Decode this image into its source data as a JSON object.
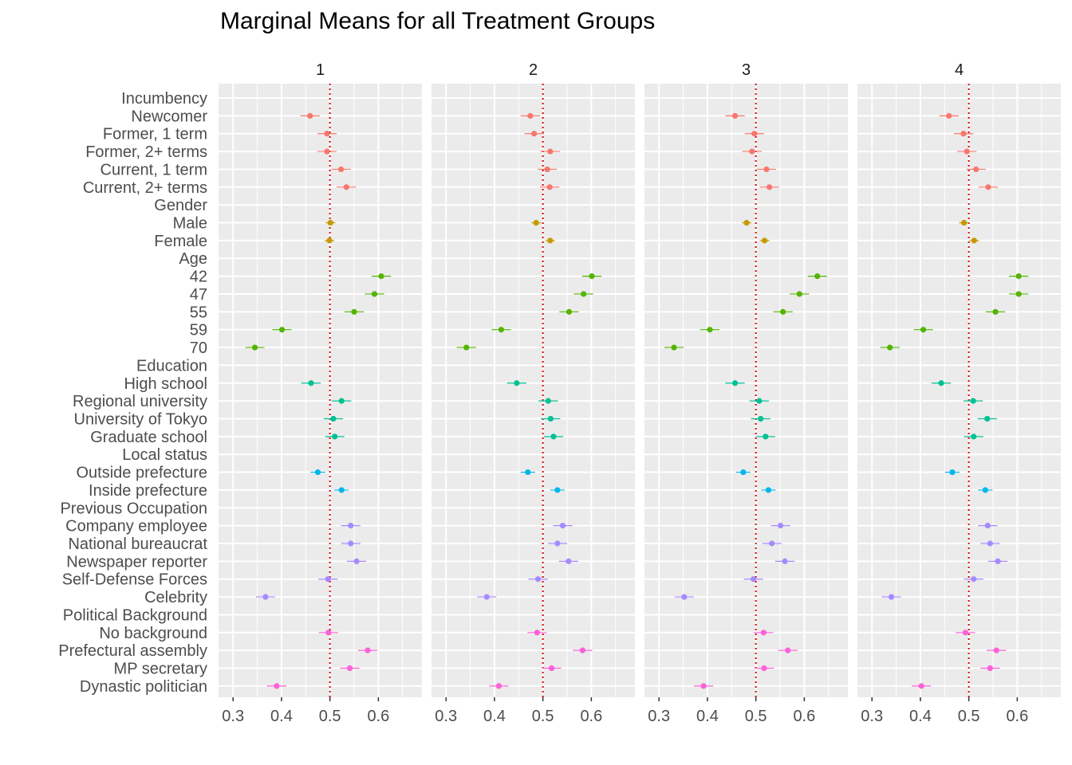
{
  "chart_data": {
    "type": "scatter",
    "title": "Marginal Means for all Treatment Groups",
    "xlabel": "",
    "ylabel": "",
    "xlim": [
      0.27,
      0.69
    ],
    "x_ticks": [
      "0.3",
      "0.4",
      "0.5",
      "0.6"
    ],
    "reference_line": 0.5,
    "grid": true,
    "legend": "none",
    "panels": [
      "1",
      "2",
      "3",
      "4"
    ],
    "rows": [
      {
        "label": "Incumbency",
        "header": true
      },
      {
        "label": "Newcomer",
        "group": "Incumbency",
        "color": "#F8766D",
        "values": [
          0.459,
          0.474,
          0.457,
          0.459
        ],
        "ci": [
          0.02,
          0.02,
          0.02,
          0.02
        ]
      },
      {
        "label": "Former, 1 term",
        "group": "Incumbency",
        "color": "#F8766D",
        "values": [
          0.494,
          0.482,
          0.497,
          0.489
        ],
        "ci": [
          0.02,
          0.02,
          0.02,
          0.02
        ]
      },
      {
        "label": "Former, 2+ terms",
        "group": "Incumbency",
        "color": "#F8766D",
        "values": [
          0.494,
          0.515,
          0.492,
          0.496
        ],
        "ci": [
          0.02,
          0.02,
          0.02,
          0.02
        ]
      },
      {
        "label": "Current, 1 term",
        "group": "Incumbency",
        "color": "#F8766D",
        "values": [
          0.523,
          0.509,
          0.522,
          0.515
        ],
        "ci": [
          0.02,
          0.02,
          0.02,
          0.02
        ]
      },
      {
        "label": "Current, 2+ terms",
        "group": "Incumbency",
        "color": "#F8766D",
        "values": [
          0.534,
          0.514,
          0.528,
          0.54
        ],
        "ci": [
          0.02,
          0.02,
          0.02,
          0.02
        ]
      },
      {
        "label": "Gender",
        "header": true
      },
      {
        "label": "Male",
        "group": "Gender",
        "color": "#C49A00",
        "values": [
          0.501,
          0.486,
          0.481,
          0.49
        ],
        "ci": [
          0.01,
          0.01,
          0.01,
          0.01
        ]
      },
      {
        "label": "Female",
        "group": "Gender",
        "color": "#C49A00",
        "values": [
          0.499,
          0.515,
          0.518,
          0.511
        ],
        "ci": [
          0.01,
          0.01,
          0.01,
          0.01
        ]
      },
      {
        "label": "Age",
        "header": true
      },
      {
        "label": "42",
        "group": "Age",
        "color": "#53B400",
        "values": [
          0.606,
          0.601,
          0.627,
          0.603
        ],
        "ci": [
          0.02,
          0.02,
          0.02,
          0.02
        ]
      },
      {
        "label": "47",
        "group": "Age",
        "color": "#53B400",
        "values": [
          0.592,
          0.584,
          0.59,
          0.603
        ],
        "ci": [
          0.02,
          0.02,
          0.02,
          0.02
        ]
      },
      {
        "label": "55",
        "group": "Age",
        "color": "#53B400",
        "values": [
          0.55,
          0.554,
          0.556,
          0.555
        ],
        "ci": [
          0.02,
          0.02,
          0.02,
          0.02
        ]
      },
      {
        "label": "59",
        "group": "Age",
        "color": "#53B400",
        "values": [
          0.401,
          0.414,
          0.405,
          0.406
        ],
        "ci": [
          0.02,
          0.02,
          0.02,
          0.02
        ]
      },
      {
        "label": "70",
        "group": "Age",
        "color": "#53B400",
        "values": [
          0.345,
          0.342,
          0.331,
          0.337
        ],
        "ci": [
          0.02,
          0.02,
          0.02,
          0.02
        ]
      },
      {
        "label": "Education",
        "header": true
      },
      {
        "label": "High school",
        "group": "Education",
        "color": "#00C094",
        "values": [
          0.461,
          0.446,
          0.457,
          0.443
        ],
        "ci": [
          0.02,
          0.02,
          0.02,
          0.02
        ]
      },
      {
        "label": "Regional university",
        "group": "Education",
        "color": "#00C094",
        "values": [
          0.524,
          0.511,
          0.507,
          0.509
        ],
        "ci": [
          0.02,
          0.02,
          0.02,
          0.02
        ]
      },
      {
        "label": "University of Tokyo",
        "group": "Education",
        "color": "#00C094",
        "values": [
          0.507,
          0.516,
          0.51,
          0.538
        ],
        "ci": [
          0.02,
          0.02,
          0.02,
          0.02
        ]
      },
      {
        "label": "Graduate school",
        "group": "Education",
        "color": "#00C094",
        "values": [
          0.51,
          0.522,
          0.52,
          0.51
        ],
        "ci": [
          0.02,
          0.02,
          0.02,
          0.02
        ]
      },
      {
        "label": "Local status",
        "header": true
      },
      {
        "label": "Outside prefecture",
        "group": "Local status",
        "color": "#00B6EB",
        "values": [
          0.475,
          0.469,
          0.474,
          0.466
        ],
        "ci": [
          0.015,
          0.015,
          0.015,
          0.015
        ]
      },
      {
        "label": "Inside prefecture",
        "group": "Local status",
        "color": "#00B6EB",
        "values": [
          0.524,
          0.53,
          0.526,
          0.534
        ],
        "ci": [
          0.015,
          0.015,
          0.015,
          0.015
        ]
      },
      {
        "label": "Previous Occupation",
        "header": true
      },
      {
        "label": "Company employee",
        "group": "Previous Occupation",
        "color": "#A58AFF",
        "values": [
          0.543,
          0.541,
          0.551,
          0.539
        ],
        "ci": [
          0.02,
          0.02,
          0.02,
          0.02
        ]
      },
      {
        "label": "National bureaucrat",
        "group": "Previous Occupation",
        "color": "#A58AFF",
        "values": [
          0.543,
          0.53,
          0.533,
          0.544
        ],
        "ci": [
          0.02,
          0.02,
          0.02,
          0.02
        ]
      },
      {
        "label": "Newspaper reporter",
        "group": "Previous Occupation",
        "color": "#A58AFF",
        "values": [
          0.555,
          0.553,
          0.56,
          0.56
        ],
        "ci": [
          0.02,
          0.02,
          0.02,
          0.02
        ]
      },
      {
        "label": "Self-Defense Forces",
        "group": "Previous Occupation",
        "color": "#A58AFF",
        "values": [
          0.496,
          0.49,
          0.495,
          0.51
        ],
        "ci": [
          0.02,
          0.02,
          0.02,
          0.02
        ]
      },
      {
        "label": "Celebrity",
        "group": "Previous Occupation",
        "color": "#A58AFF",
        "values": [
          0.367,
          0.384,
          0.352,
          0.34
        ],
        "ci": [
          0.02,
          0.02,
          0.02,
          0.02
        ]
      },
      {
        "label": "Political Background",
        "header": true
      },
      {
        "label": "No background",
        "group": "Political Background",
        "color": "#FB61D7",
        "values": [
          0.497,
          0.488,
          0.516,
          0.493
        ],
        "ci": [
          0.02,
          0.02,
          0.02,
          0.02
        ]
      },
      {
        "label": "Prefectural assembly",
        "group": "Political Background",
        "color": "#FB61D7",
        "values": [
          0.578,
          0.582,
          0.566,
          0.557
        ],
        "ci": [
          0.02,
          0.02,
          0.02,
          0.02
        ]
      },
      {
        "label": "MP secretary",
        "group": "Political Background",
        "color": "#FB61D7",
        "values": [
          0.541,
          0.518,
          0.517,
          0.544
        ],
        "ci": [
          0.02,
          0.02,
          0.02,
          0.02
        ]
      },
      {
        "label": "Dynastic politician",
        "group": "Political Background",
        "color": "#FB61D7",
        "values": [
          0.39,
          0.409,
          0.392,
          0.402
        ],
        "ci": [
          0.02,
          0.02,
          0.02,
          0.02
        ]
      }
    ]
  }
}
